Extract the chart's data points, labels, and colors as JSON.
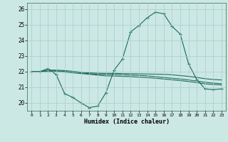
{
  "title": "",
  "xlabel": "Humidex (Indice chaleur)",
  "ylabel": "",
  "background_color": "#cce8e4",
  "grid_color": "#aaccca",
  "line_color": "#1a6b5a",
  "xlim": [
    -0.5,
    23.5
  ],
  "ylim": [
    19.5,
    26.4
  ],
  "yticks": [
    20,
    21,
    22,
    23,
    24,
    25,
    26
  ],
  "xticks": [
    0,
    1,
    2,
    3,
    4,
    5,
    6,
    7,
    8,
    9,
    10,
    11,
    12,
    13,
    14,
    15,
    16,
    17,
    18,
    19,
    20,
    21,
    22,
    23
  ],
  "curves": [
    {
      "x": [
        0,
        1,
        2,
        3,
        4,
        5,
        6,
        7,
        8,
        9,
        10,
        11,
        12,
        13,
        14,
        15,
        16,
        17,
        18,
        19,
        20,
        21,
        22,
        23
      ],
      "y": [
        22.0,
        22.0,
        22.2,
        21.8,
        20.6,
        20.35,
        20.0,
        19.7,
        19.8,
        20.65,
        22.1,
        22.8,
        24.55,
        24.95,
        25.45,
        25.8,
        25.7,
        24.9,
        24.4,
        22.5,
        21.5,
        20.9,
        20.85,
        20.9
      ],
      "marker": "+",
      "markersize": 3.0,
      "linewidth": 0.8
    },
    {
      "x": [
        0,
        1,
        2,
        3,
        4,
        5,
        6,
        7,
        8,
        9,
        10,
        11,
        12,
        13,
        14,
        15,
        16,
        17,
        18,
        19,
        20,
        21,
        22,
        23
      ],
      "y": [
        22.0,
        22.0,
        22.0,
        22.0,
        21.97,
        21.93,
        21.88,
        21.83,
        21.78,
        21.73,
        21.72,
        21.7,
        21.68,
        21.65,
        21.62,
        21.58,
        21.53,
        21.48,
        21.43,
        21.37,
        21.3,
        21.22,
        21.18,
        21.15
      ],
      "marker": null,
      "markersize": 0,
      "linewidth": 0.8
    },
    {
      "x": [
        0,
        1,
        2,
        3,
        4,
        5,
        6,
        7,
        8,
        9,
        10,
        11,
        12,
        13,
        14,
        15,
        16,
        17,
        18,
        19,
        20,
        21,
        22,
        23
      ],
      "y": [
        22.0,
        22.0,
        22.05,
        22.05,
        22.02,
        21.97,
        21.92,
        21.87,
        21.83,
        21.82,
        21.82,
        21.8,
        21.78,
        21.76,
        21.73,
        21.68,
        21.63,
        21.58,
        21.53,
        21.47,
        21.4,
        21.32,
        21.27,
        21.23
      ],
      "marker": null,
      "markersize": 0,
      "linewidth": 0.8
    },
    {
      "x": [
        0,
        1,
        2,
        3,
        4,
        5,
        6,
        7,
        8,
        9,
        10,
        11,
        12,
        13,
        14,
        15,
        16,
        17,
        18,
        19,
        20,
        21,
        22,
        23
      ],
      "y": [
        22.0,
        22.0,
        22.1,
        22.1,
        22.07,
        22.02,
        21.97,
        21.92,
        21.9,
        21.89,
        21.89,
        21.88,
        21.87,
        21.86,
        21.85,
        21.84,
        21.83,
        21.8,
        21.75,
        21.7,
        21.63,
        21.55,
        21.5,
        21.47
      ],
      "marker": null,
      "markersize": 0,
      "linewidth": 0.8
    }
  ]
}
